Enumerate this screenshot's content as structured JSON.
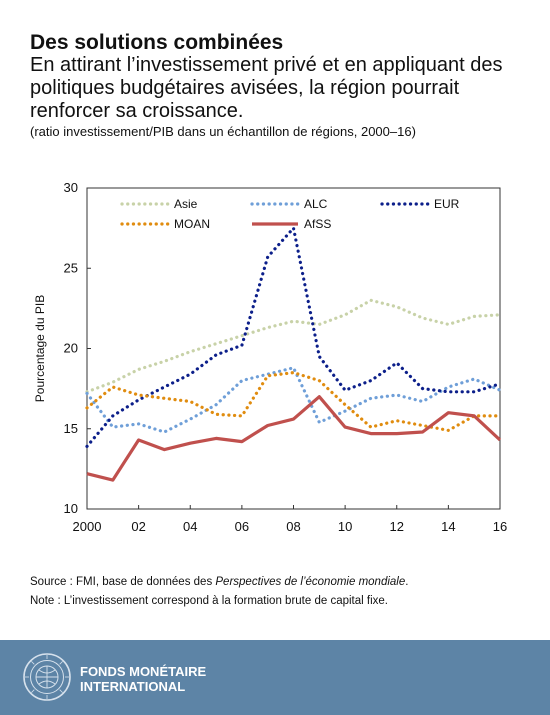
{
  "header": {
    "title": "Des solutions combinées",
    "subtitle": "En attirant l’investissement privé et en appliquant des politiques budgétaires avisées, la région pourrait renforcer sa croissance.",
    "note": "(ratio investissement/PIB dans un échantillon de régions, 2000–16)"
  },
  "chart_data": {
    "type": "line",
    "ylabel": "Pourcentage du PIB",
    "ylim": [
      10,
      30
    ],
    "yticks": [
      "10",
      "15",
      "20",
      "25",
      "30"
    ],
    "xlim": [
      2000,
      2016
    ],
    "xticks": [
      "2000",
      "02",
      "04",
      "06",
      "08",
      "10",
      "12",
      "14",
      "16"
    ],
    "grid": false,
    "legend": "top",
    "x": [
      2000,
      2001,
      2002,
      2003,
      2004,
      2005,
      2006,
      2007,
      2008,
      2009,
      2010,
      2011,
      2012,
      2013,
      2014,
      2015,
      2016
    ],
    "series": [
      {
        "name": "Asie",
        "style": "dotted",
        "color": "#c8d2a8",
        "values": [
          17.3,
          17.9,
          18.7,
          19.2,
          19.8,
          20.3,
          20.8,
          21.3,
          21.7,
          21.5,
          22.1,
          23.0,
          22.6,
          21.9,
          21.5,
          22.0,
          22.1
        ]
      },
      {
        "name": "ALC",
        "style": "dotted",
        "color": "#6f9fd8",
        "values": [
          17.2,
          15.1,
          15.3,
          14.8,
          15.6,
          16.5,
          18.0,
          18.4,
          18.8,
          15.4,
          16.1,
          16.9,
          17.1,
          16.7,
          17.6,
          18.1,
          17.4
        ]
      },
      {
        "name": "EUR",
        "style": "dotted",
        "color": "#0c1f8a",
        "values": [
          13.9,
          15.8,
          16.8,
          17.6,
          18.4,
          19.6,
          20.2,
          25.7,
          27.5,
          19.5,
          17.4,
          18.0,
          19.1,
          17.5,
          17.3,
          17.3,
          17.8
        ]
      },
      {
        "name": "MOAN",
        "style": "dotted",
        "color": "#e08c0f",
        "values": [
          16.3,
          17.6,
          17.1,
          16.9,
          16.7,
          15.9,
          15.8,
          18.3,
          18.5,
          18.0,
          16.5,
          15.1,
          15.5,
          15.2,
          14.9,
          15.8,
          15.8
        ]
      },
      {
        "name": "AfSS",
        "style": "solid",
        "color": "#c0504d",
        "values": [
          12.2,
          11.8,
          14.3,
          13.7,
          14.1,
          14.4,
          14.2,
          15.2,
          15.6,
          17.0,
          15.1,
          14.7,
          14.7,
          14.8,
          16.0,
          15.8,
          14.3
        ]
      }
    ]
  },
  "footer": {
    "source_prefix": "Source : FMI, base de données des ",
    "source_title": "Perspectives de l’économie mondiale",
    "source_suffix": ".",
    "note": "Note : L’investissement correspond à la formation brute de capital fixe.",
    "org_line1": "FONDS MONÉTAIRE",
    "org_line2": "INTERNATIONAL",
    "background_color": "#5d84a6",
    "logo": "imf-seal-icon"
  }
}
